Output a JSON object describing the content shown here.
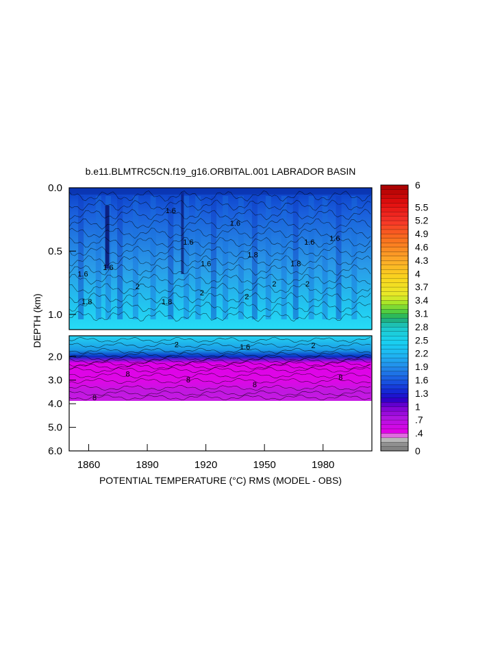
{
  "chart_data": {
    "type": "heatmap",
    "title": "b.e11.BLMTRC5CN.f19_g16.ORBITAL.001 LABRADOR BASIN",
    "xlabel": "POTENTIAL TEMPERATURE (°C) RMS (MODEL - OBS)",
    "ylabel": "DEPTH (km)",
    "xlim": [
      1850,
      2005
    ],
    "x_ticks": [
      1860,
      1890,
      1920,
      1950,
      1980
    ],
    "panels": [
      {
        "name": "upper",
        "ylim": [
          0.0,
          1.12
        ],
        "y_ticks": [
          0.0,
          0.5,
          1.0
        ],
        "y_tick_labels": [
          "0.0",
          "0.5",
          "1.0"
        ]
      },
      {
        "name": "lower",
        "ylim": [
          1.12,
          6.0
        ],
        "y_ticks": [
          2.0,
          3.0,
          4.0,
          5.0,
          6.0
        ],
        "y_tick_labels": [
          "2.0",
          "3.0",
          "4.0",
          "5.0",
          "6.0"
        ]
      }
    ],
    "colorbar": {
      "min": 0,
      "max": 6,
      "labels": [
        {
          "value": 6,
          "text": "6"
        },
        {
          "value": 5.5,
          "text": "5.5"
        },
        {
          "value": 5.2,
          "text": "5.2"
        },
        {
          "value": 4.9,
          "text": "4.9"
        },
        {
          "value": 4.6,
          "text": "4.6"
        },
        {
          "value": 4.3,
          "text": "4.3"
        },
        {
          "value": 4,
          "text": "4"
        },
        {
          "value": 3.7,
          "text": "3.7"
        },
        {
          "value": 3.4,
          "text": "3.4"
        },
        {
          "value": 3.1,
          "text": "3.1"
        },
        {
          "value": 2.8,
          "text": "2.8"
        },
        {
          "value": 2.5,
          "text": "2.5"
        },
        {
          "value": 2.2,
          "text": "2.2"
        },
        {
          "value": 1.9,
          "text": "1.9"
        },
        {
          "value": 1.6,
          "text": "1.6"
        },
        {
          "value": 1.3,
          "text": "1.3"
        },
        {
          "value": 1,
          "text": "1"
        },
        {
          "value": 0.7,
          "text": ".7"
        },
        {
          "value": 0.4,
          "text": ".4"
        },
        {
          "value": 0,
          "text": "0"
        }
      ]
    },
    "contour_labels": [
      {
        "x": 1857,
        "y": 0.7,
        "text": "1.6",
        "panel": 0
      },
      {
        "x": 1870,
        "y": 0.65,
        "text": "1.6",
        "panel": 0
      },
      {
        "x": 1902,
        "y": 0.2,
        "text": "1.6",
        "panel": 0
      },
      {
        "x": 1911,
        "y": 0.45,
        "text": "1.6",
        "panel": 0
      },
      {
        "x": 1920,
        "y": 0.62,
        "text": "1.6",
        "panel": 0
      },
      {
        "x": 1935,
        "y": 0.3,
        "text": "1.6",
        "panel": 0
      },
      {
        "x": 1944,
        "y": 0.55,
        "text": "1.8",
        "panel": 0
      },
      {
        "x": 1966,
        "y": 0.62,
        "text": "1.8",
        "panel": 0
      },
      {
        "x": 1973,
        "y": 0.45,
        "text": "1.6",
        "panel": 0
      },
      {
        "x": 1986,
        "y": 0.42,
        "text": "1.6",
        "panel": 0
      },
      {
        "x": 1859,
        "y": 0.92,
        "text": "1.8",
        "panel": 0
      },
      {
        "x": 1900,
        "y": 0.92,
        "text": "1.8",
        "panel": 0
      },
      {
        "x": 1918,
        "y": 0.85,
        "text": "2",
        "panel": 0
      },
      {
        "x": 1941,
        "y": 0.88,
        "text": "2",
        "panel": 0
      },
      {
        "x": 1955,
        "y": 0.78,
        "text": "2",
        "panel": 0
      },
      {
        "x": 1972,
        "y": 0.78,
        "text": "2",
        "panel": 0
      },
      {
        "x": 1885,
        "y": 0.8,
        "text": "2",
        "panel": 0
      },
      {
        "x": 1905,
        "y": 1.6,
        "text": "2",
        "panel": 1
      },
      {
        "x": 1940,
        "y": 1.7,
        "text": "1.6",
        "panel": 1
      },
      {
        "x": 1975,
        "y": 1.65,
        "text": "2",
        "panel": 1
      },
      {
        "x": 1880,
        "y": 2.85,
        "text": "8",
        "panel": 1
      },
      {
        "x": 1911,
        "y": 3.1,
        "text": "8",
        "panel": 1
      },
      {
        "x": 1945,
        "y": 3.3,
        "text": "8",
        "panel": 1
      },
      {
        "x": 1989,
        "y": 3.0,
        "text": "8",
        "panel": 1
      },
      {
        "x": 1863,
        "y": 3.85,
        "text": "8",
        "panel": 1
      }
    ]
  }
}
